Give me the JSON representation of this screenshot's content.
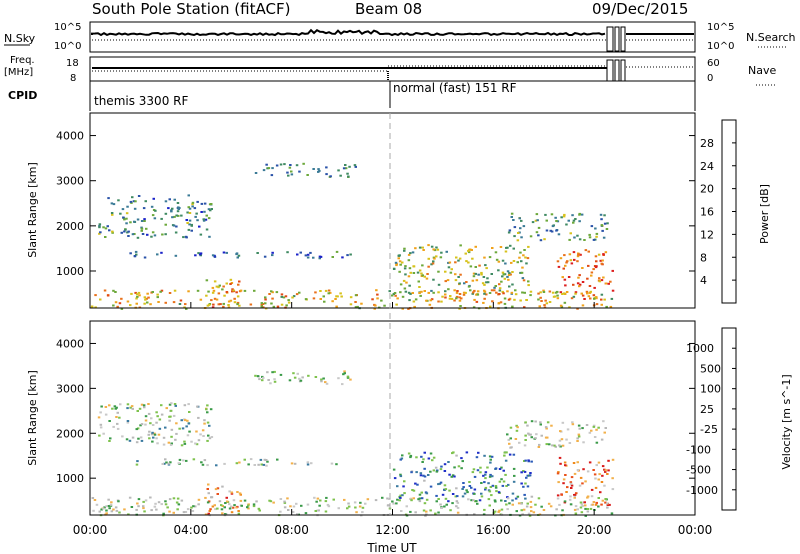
{
  "header": {
    "station": "South Pole Station (fitACF)",
    "beam": "Beam 08",
    "date": "09/Dec/2015"
  },
  "top_panels": {
    "nsky_label": "N.Sky",
    "nsky_ticks": [
      "10^5",
      "10^0"
    ],
    "nsearch_label": "N.Search",
    "nsearch_ticks": [
      "10^5",
      "10^0"
    ],
    "freq_label": "Freq.",
    "freq_unit": "[MHz]",
    "freq_ticks": [
      "18",
      "8"
    ],
    "nave_label": "Nave",
    "nave_ticks": [
      "60",
      "0"
    ],
    "cpid_label": "CPID",
    "cpid_segments": [
      {
        "label": "themis 3300 RF",
        "start_hour": 0,
        "end_hour": 12
      },
      {
        "label": "normal (fast) 151 RF",
        "start_hour": 12,
        "end_hour": 24
      }
    ]
  },
  "x_axis": {
    "label": "Time UT",
    "ticks": [
      "00:00",
      "04:00",
      "08:00",
      "12:00",
      "16:00",
      "20:00",
      "00:00"
    ]
  },
  "colors": {
    "power_scale": [
      "#1a22c8",
      "#2a52a8",
      "#3a7a96",
      "#3f8a62",
      "#6ca83a",
      "#d7c21c",
      "#f0a21a",
      "#e8701a",
      "#e04a14",
      "#dd1e1e"
    ],
    "velocity_scale": [
      "#d81a1a",
      "#e8501a",
      "#ef8a1c",
      "#f2b04a",
      "#c8c8c8",
      "#b8b8b8",
      "#7ec24c",
      "#3a9a48",
      "#3a7aa0",
      "#2a5ab8",
      "#1e2ec8"
    ],
    "dashed_line": "#aaaaaa"
  },
  "chart_data": [
    {
      "type": "heatmap",
      "title": "",
      "xlabel": "Time UT",
      "ylabel": "Slant Range [km]",
      "xlim": [
        0,
        24
      ],
      "ylim": [
        180,
        4500
      ],
      "yticks": [
        1000,
        2000,
        3000,
        4000
      ],
      "colorbar_label": "Power [dB]",
      "colorbar_ticks": [
        "4",
        "8",
        "12",
        "16",
        "20",
        "24",
        "28"
      ],
      "colorbar_range": [
        0,
        30
      ],
      "scatter_regions": [
        {
          "t0": 0.3,
          "t1": 4.8,
          "r0": 1750,
          "r1": 2700,
          "level": 0.3
        },
        {
          "t0": 1.5,
          "t1": 10.5,
          "r0": 1300,
          "r1": 1450,
          "level": 0.2
        },
        {
          "t0": 6.5,
          "t1": 10.5,
          "r0": 3100,
          "r1": 3400,
          "level": 0.25
        },
        {
          "t0": 4.5,
          "t1": 6.0,
          "r0": 200,
          "r1": 900,
          "level": 0.7
        },
        {
          "t0": 12.0,
          "t1": 17.5,
          "r0": 500,
          "r1": 1600,
          "level": 0.5
        },
        {
          "t0": 18.5,
          "t1": 20.7,
          "r0": 400,
          "r1": 1500,
          "level": 0.8
        },
        {
          "t0": 16.5,
          "t1": 20.5,
          "r0": 1700,
          "r1": 2300,
          "level": 0.35
        },
        {
          "t0": 0.0,
          "t1": 20.7,
          "r0": 180,
          "r1": 600,
          "level": 0.6
        }
      ]
    },
    {
      "type": "heatmap",
      "title": "",
      "xlabel": "Time UT",
      "ylabel": "Slant Range [km]",
      "xlim": [
        0,
        24
      ],
      "ylim": [
        180,
        4500
      ],
      "yticks": [
        1000,
        2000,
        3000,
        4000
      ],
      "colorbar_label": "Velocity [m s^-1]",
      "colorbar_ticks": [
        "-1000",
        "-500",
        "-100",
        "-25",
        "25",
        "100",
        "500",
        "1000"
      ],
      "colorbar_range": [
        -1200,
        1200
      ],
      "scatter_regions": [
        {
          "t0": 0.3,
          "t1": 4.8,
          "r0": 1750,
          "r1": 2700,
          "level": 0.55
        },
        {
          "t0": 1.5,
          "t1": 10.5,
          "r0": 1300,
          "r1": 1450,
          "level": 0.55
        },
        {
          "t0": 6.5,
          "t1": 10.5,
          "r0": 3100,
          "r1": 3400,
          "level": 0.5
        },
        {
          "t0": 4.5,
          "t1": 6.0,
          "r0": 200,
          "r1": 900,
          "level": 0.25
        },
        {
          "t0": 12.0,
          "t1": 17.5,
          "r0": 500,
          "r1": 1600,
          "level": 0.75
        },
        {
          "t0": 18.5,
          "t1": 20.7,
          "r0": 400,
          "r1": 1500,
          "level": 0.2
        },
        {
          "t0": 16.5,
          "t1": 20.5,
          "r0": 1700,
          "r1": 2300,
          "level": 0.5
        },
        {
          "t0": 0.0,
          "t1": 20.7,
          "r0": 180,
          "r1": 600,
          "level": 0.5
        }
      ]
    }
  ]
}
